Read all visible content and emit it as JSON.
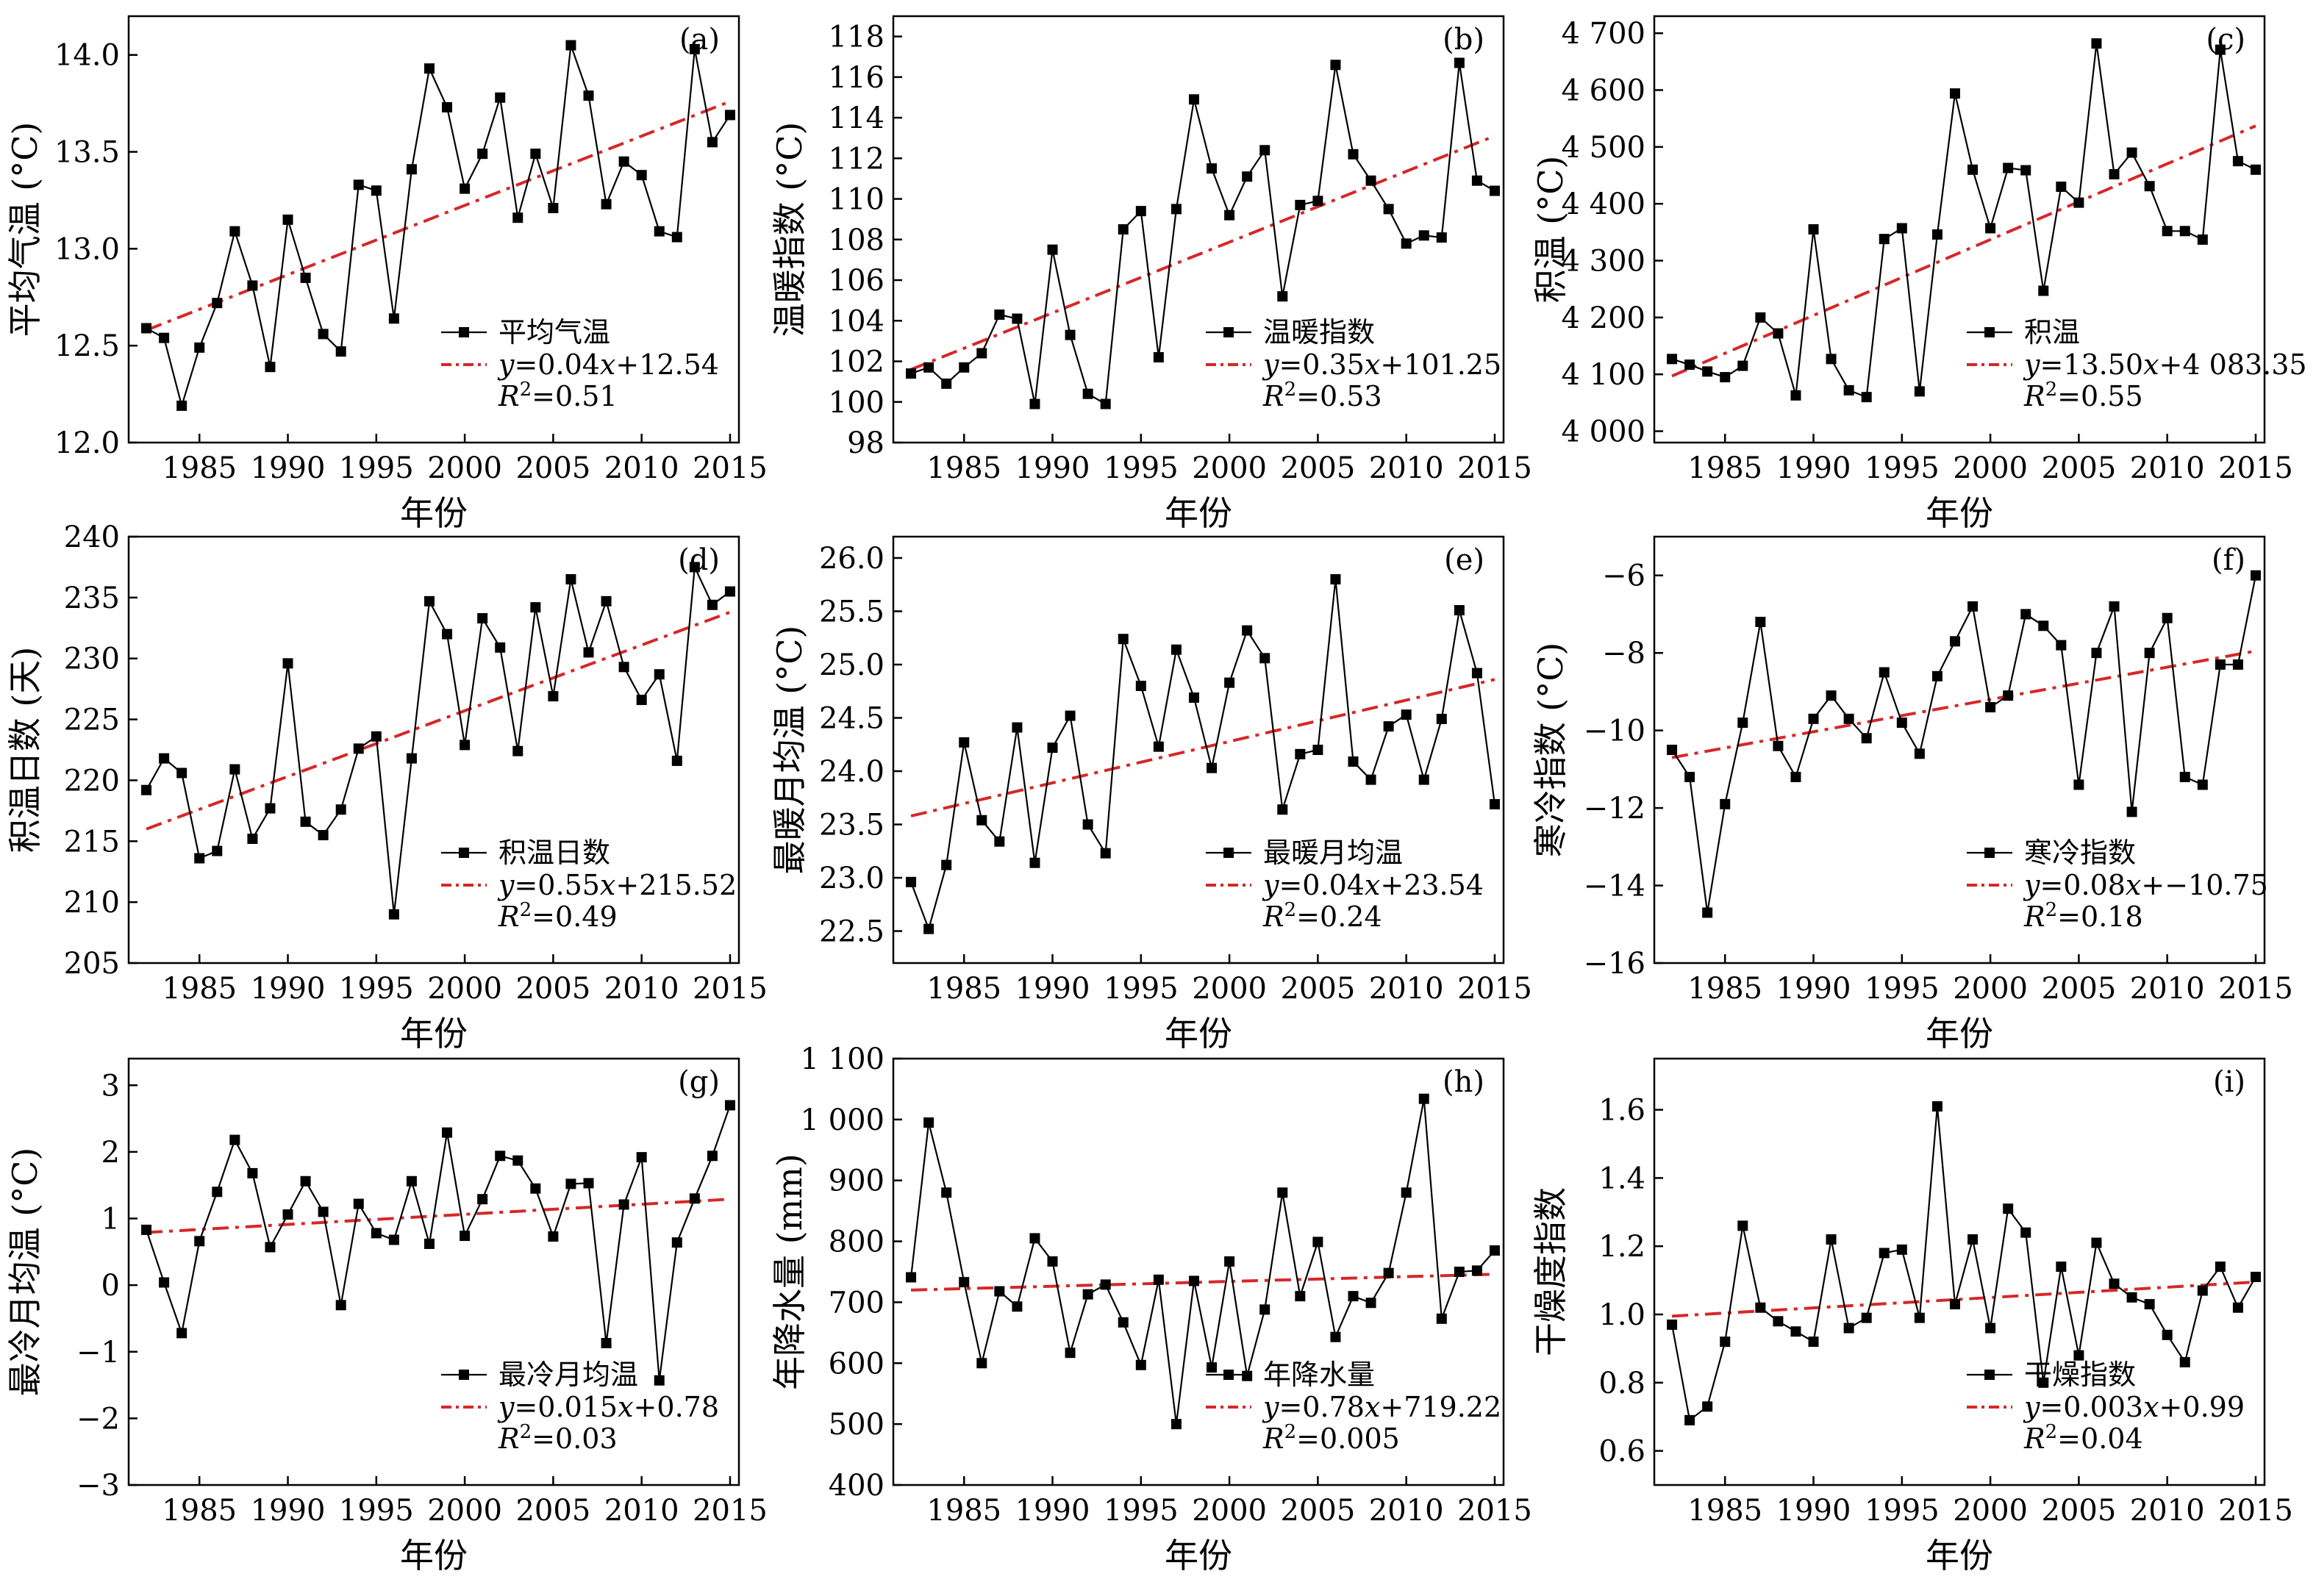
{
  "figure": {
    "x_ticks": [
      "1985",
      "1990",
      "1995",
      "2000",
      "2005",
      "2010",
      "2015"
    ]
  },
  "chart_data": [
    {
      "panel": "(a)",
      "type": "line",
      "xlabel": "年份",
      "ylabel": "平均气温 (°C)",
      "ylim": [
        12.0,
        14.2
      ],
      "yticks": [
        12.0,
        12.5,
        13.0,
        13.5,
        14.0
      ],
      "ytick_labels": [
        "12.0",
        "12.5",
        "13.0",
        "13.5",
        "14.0"
      ],
      "x": [
        1982,
        1983,
        1984,
        1985,
        1986,
        1987,
        1988,
        1989,
        1990,
        1991,
        1992,
        1993,
        1994,
        1995,
        1996,
        1997,
        1998,
        1999,
        2000,
        2001,
        2002,
        2003,
        2004,
        2005,
        2006,
        2007,
        2008,
        2009,
        2010,
        2011,
        2012,
        2013,
        2014,
        2015
      ],
      "series": [
        {
          "name": "平均气温",
          "values": [
            12.59,
            12.54,
            12.19,
            12.49,
            12.72,
            13.09,
            12.81,
            12.39,
            13.15,
            12.85,
            12.56,
            12.47,
            13.33,
            13.3,
            12.64,
            13.41,
            13.93,
            13.73,
            13.31,
            13.49,
            13.78,
            13.16,
            13.49,
            13.21,
            14.05,
            13.79,
            13.23,
            13.45,
            13.38,
            13.09,
            13.06,
            14.03,
            13.55,
            13.69
          ]
        }
      ],
      "trend": {
        "equation": "y=0.04x+12.54",
        "r2": "R²=0.51",
        "start": 12.58,
        "end": 13.76
      },
      "legend": {
        "series_label": "平均气温",
        "eq_prefix": "y",
        "eq_mid": "=0.04",
        "eq_x": "x",
        "eq_rest": "+12.54",
        "r2_prefix": "R",
        "r2_sup": "2",
        "r2_rest": "=0.51"
      }
    },
    {
      "panel": "(b)",
      "type": "line",
      "xlabel": "年份",
      "ylabel": "温暖指数 (°C)",
      "ylim": [
        98,
        119
      ],
      "yticks": [
        98,
        100,
        102,
        104,
        106,
        108,
        110,
        112,
        114,
        116,
        118
      ],
      "ytick_labels": [
        "98",
        "100",
        "102",
        "104",
        "106",
        "108",
        "110",
        "112",
        "114",
        "116",
        "118"
      ],
      "x": [
        1982,
        1983,
        1984,
        1985,
        1986,
        1987,
        1988,
        1989,
        1990,
        1991,
        1992,
        1993,
        1994,
        1995,
        1996,
        1997,
        1998,
        1999,
        2000,
        2001,
        2002,
        2003,
        2004,
        2005,
        2006,
        2007,
        2008,
        2009,
        2010,
        2011,
        2012,
        2013,
        2014,
        2015
      ],
      "series": [
        {
          "name": "温暖指数",
          "values": [
            101.4,
            101.7,
            100.9,
            101.7,
            102.4,
            104.3,
            104.1,
            99.9,
            107.5,
            103.3,
            100.4,
            99.9,
            108.5,
            109.4,
            102.2,
            109.5,
            114.9,
            111.5,
            109.2,
            111.1,
            112.4,
            105.2,
            109.7,
            109.9,
            116.6,
            112.2,
            110.9,
            109.5,
            107.8,
            108.2,
            108.1,
            116.7,
            110.9,
            110.4
          ]
        }
      ],
      "trend": {
        "equation": "y=0.35x+101.25",
        "r2": "R²=0.53",
        "start": 101.6,
        "end": 113.1
      },
      "legend": {
        "series_label": "温暖指数",
        "eq_prefix": "y",
        "eq_mid": "=0.35",
        "eq_x": "x",
        "eq_rest": "+101.25",
        "r2_prefix": "R",
        "r2_sup": "2",
        "r2_rest": "=0.53"
      }
    },
    {
      "panel": "(c)",
      "type": "line",
      "xlabel": "年份",
      "ylabel": "积温 (°C)",
      "ylim": [
        3980,
        4730
      ],
      "yticks": [
        4000,
        4100,
        4200,
        4300,
        4400,
        4500,
        4600,
        4700
      ],
      "ytick_labels": [
        "4 000",
        "4 100",
        "4 200",
        "4 300",
        "4 400",
        "4 500",
        "4 600",
        "4 700"
      ],
      "x": [
        1982,
        1983,
        1984,
        1985,
        1986,
        1987,
        1988,
        1989,
        1990,
        1991,
        1992,
        1993,
        1994,
        1995,
        1996,
        1997,
        1998,
        1999,
        2000,
        2001,
        2002,
        2003,
        2004,
        2005,
        2006,
        2007,
        2008,
        2009,
        2010,
        2011,
        2012,
        2013,
        2014,
        2015
      ],
      "series": [
        {
          "name": "积温",
          "values": [
            4127,
            4117,
            4105,
            4095,
            4115,
            4200,
            4172,
            4063,
            4355,
            4127,
            4072,
            4060,
            4338,
            4357,
            4070,
            4346,
            4594,
            4460,
            4357,
            4463,
            4459,
            4247,
            4430,
            4402,
            4682,
            4452,
            4490,
            4431,
            4352,
            4352,
            4337,
            4671,
            4475,
            4460
          ]
        }
      ],
      "trend": {
        "equation": "y=13.50x+4 083.35",
        "r2": "R²=0.55",
        "start": 4097,
        "end": 4537
      },
      "legend": {
        "series_label": "积温",
        "eq_prefix": "y",
        "eq_mid": "=13.50",
        "eq_x": "x",
        "eq_rest": "+4 083.35",
        "r2_prefix": "R",
        "r2_sup": "2",
        "r2_rest": "=0.55"
      }
    },
    {
      "panel": "(d)",
      "type": "line",
      "xlabel": "年份",
      "ylabel": "积温日数 (天)",
      "ylim": [
        205,
        240
      ],
      "yticks": [
        205,
        210,
        215,
        220,
        225,
        230,
        235,
        240
      ],
      "ytick_labels": [
        "205",
        "210",
        "215",
        "220",
        "225",
        "230",
        "235",
        "240"
      ],
      "x": [
        1982,
        1983,
        1984,
        1985,
        1986,
        1987,
        1988,
        1989,
        1990,
        1991,
        1992,
        1993,
        1994,
        1995,
        1996,
        1997,
        1998,
        1999,
        2000,
        2001,
        2002,
        2003,
        2004,
        2005,
        2006,
        2007,
        2008,
        2009,
        2010,
        2011,
        2012,
        2013,
        2014,
        2015
      ],
      "series": [
        {
          "name": "积温日数",
          "values": [
            219.2,
            221.8,
            220.6,
            213.6,
            214.2,
            220.9,
            215.2,
            217.7,
            229.6,
            216.6,
            215.5,
            217.6,
            222.6,
            223.6,
            209.0,
            221.8,
            234.7,
            232.0,
            222.9,
            233.3,
            230.9,
            222.4,
            234.2,
            226.9,
            236.5,
            230.5,
            234.7,
            229.3,
            226.6,
            228.7,
            221.6,
            237.5,
            234.4,
            235.5
          ]
        }
      ],
      "trend": {
        "equation": "y=0.55x+215.52",
        "r2": "R²=0.49",
        "start": 216.0,
        "end": 233.8
      },
      "legend": {
        "series_label": "积温日数",
        "eq_prefix": "y",
        "eq_mid": "=0.55",
        "eq_x": "x",
        "eq_rest": "+215.52",
        "r2_prefix": "R",
        "r2_sup": "2",
        "r2_rest": "=0.49"
      }
    },
    {
      "panel": "(e)",
      "type": "line",
      "xlabel": "年份",
      "ylabel": "最暖月均温 (°C)",
      "ylim": [
        22.2,
        26.2
      ],
      "yticks": [
        22.5,
        23.0,
        23.5,
        24.0,
        24.5,
        25.0,
        25.5,
        26.0
      ],
      "ytick_labels": [
        "22.5",
        "23.0",
        "23.5",
        "24.0",
        "24.5",
        "25.0",
        "25.5",
        "26.0"
      ],
      "x": [
        1982,
        1983,
        1984,
        1985,
        1986,
        1987,
        1988,
        1989,
        1990,
        1991,
        1992,
        1993,
        1994,
        1995,
        1996,
        1997,
        1998,
        1999,
        2000,
        2001,
        2002,
        2003,
        2004,
        2005,
        2006,
        2007,
        2008,
        2009,
        2010,
        2011,
        2012,
        2013,
        2014,
        2015
      ],
      "series": [
        {
          "name": "最暖月均温",
          "values": [
            22.96,
            22.52,
            23.12,
            24.27,
            23.54,
            23.34,
            24.41,
            23.14,
            24.22,
            24.52,
            23.5,
            23.23,
            25.24,
            24.8,
            24.23,
            25.14,
            24.69,
            24.03,
            24.83,
            25.32,
            25.06,
            23.64,
            24.16,
            24.2,
            25.8,
            24.09,
            23.92,
            24.42,
            24.53,
            23.92,
            24.49,
            25.51,
            24.92,
            23.69
          ]
        }
      ],
      "trend": {
        "equation": "y=0.04x+23.54",
        "r2": "R²=0.24",
        "start": 23.58,
        "end": 24.86
      },
      "legend": {
        "series_label": "最暖月均温",
        "eq_prefix": "y",
        "eq_mid": "=0.04",
        "eq_x": "x",
        "eq_rest": "+23.54",
        "r2_prefix": "R",
        "r2_sup": "2",
        "r2_rest": "=0.24"
      }
    },
    {
      "panel": "(f)",
      "type": "line",
      "xlabel": "年份",
      "ylabel": "寒冷指数 (°C)",
      "ylim": [
        -16,
        -5
      ],
      "yticks": [
        -16,
        -14,
        -12,
        -10,
        -8,
        -6
      ],
      "ytick_labels": [
        "−16",
        "−14",
        "−12",
        "−10",
        "−8",
        "−6"
      ],
      "x": [
        1982,
        1983,
        1984,
        1985,
        1986,
        1987,
        1988,
        1989,
        1990,
        1991,
        1992,
        1993,
        1994,
        1995,
        1996,
        1997,
        1998,
        1999,
        2000,
        2001,
        2002,
        2003,
        2004,
        2005,
        2006,
        2007,
        2008,
        2009,
        2010,
        2011,
        2012,
        2013,
        2014,
        2015
      ],
      "series": [
        {
          "name": "寒冷指数",
          "values": [
            -10.5,
            -11.2,
            -14.7,
            -11.9,
            -9.8,
            -7.2,
            -10.4,
            -11.2,
            -9.7,
            -9.1,
            -9.7,
            -10.2,
            -8.5,
            -9.8,
            -10.6,
            -8.6,
            -7.7,
            -6.8,
            -9.4,
            -9.1,
            -7.0,
            -7.3,
            -7.8,
            -11.4,
            -8.0,
            -6.8,
            -12.1,
            -8.0,
            -7.1,
            -11.2,
            -11.4,
            -8.3,
            -8.3,
            -6.0
          ]
        }
      ],
      "trend": {
        "equation": "y=0.08x+−10.75",
        "r2": "R²=0.18",
        "start": -10.7,
        "end": -7.95
      },
      "legend": {
        "series_label": "寒冷指数",
        "eq_prefix": "y",
        "eq_mid": "=0.08",
        "eq_x": "x",
        "eq_rest": "+−10.75",
        "r2_prefix": "R",
        "r2_sup": "2",
        "r2_rest": "=0.18"
      }
    },
    {
      "panel": "(g)",
      "type": "line",
      "xlabel": "年份",
      "ylabel": "最冷月均温 (°C)",
      "ylim": [
        -3,
        3.4
      ],
      "yticks": [
        -3,
        -2,
        -1,
        0,
        1,
        2,
        3
      ],
      "ytick_labels": [
        "−3",
        "−2",
        "−1",
        "0",
        "1",
        "2",
        "3"
      ],
      "x": [
        1982,
        1983,
        1984,
        1985,
        1986,
        1987,
        1988,
        1989,
        1990,
        1991,
        1992,
        1993,
        1994,
        1995,
        1996,
        1997,
        1998,
        1999,
        2000,
        2001,
        2002,
        2003,
        2004,
        2005,
        2006,
        2007,
        2008,
        2009,
        2010,
        2011,
        2012,
        2013,
        2014,
        2015
      ],
      "series": [
        {
          "name": "最冷月均温",
          "values": [
            0.83,
            0.04,
            -0.72,
            0.66,
            1.4,
            2.18,
            1.68,
            0.57,
            1.06,
            1.56,
            1.1,
            -0.3,
            1.22,
            0.78,
            0.68,
            1.56,
            0.62,
            2.29,
            0.74,
            1.29,
            1.94,
            1.87,
            1.45,
            0.73,
            1.52,
            1.53,
            -0.87,
            1.21,
            1.92,
            -1.43,
            0.64,
            1.3,
            1.94,
            2.7
          ]
        }
      ],
      "trend": {
        "equation": "y=0.015x+0.78",
        "r2": "R²=0.03",
        "start": 0.79,
        "end": 1.29
      },
      "legend": {
        "series_label": "最冷月均温",
        "eq_prefix": "y",
        "eq_mid": "=0.015",
        "eq_x": "x",
        "eq_rest": "+0.78",
        "r2_prefix": "R",
        "r2_sup": "2",
        "r2_rest": "=0.03"
      }
    },
    {
      "panel": "(h)",
      "type": "line",
      "xlabel": "年份",
      "ylabel": "年降水量 (mm)",
      "ylim": [
        400,
        1100
      ],
      "yticks": [
        400,
        500,
        600,
        700,
        800,
        900,
        1000,
        1100
      ],
      "ytick_labels": [
        "400",
        "500",
        "600",
        "700",
        "800",
        "900",
        "1 000",
        "1 100"
      ],
      "x": [
        1982,
        1983,
        1984,
        1985,
        1986,
        1987,
        1988,
        1989,
        1990,
        1991,
        1992,
        1993,
        1994,
        1995,
        1996,
        1997,
        1998,
        1999,
        2000,
        2001,
        2002,
        2003,
        2004,
        2005,
        2006,
        2007,
        2008,
        2009,
        2010,
        2011,
        2012,
        2013,
        2014,
        2015
      ],
      "series": [
        {
          "name": "年降水量",
          "values": [
            741,
            995,
            880,
            733,
            600,
            718,
            693,
            805,
            767,
            617,
            713,
            729,
            667,
            597,
            737,
            500,
            735,
            593,
            767,
            579,
            688,
            880,
            710,
            799,
            643,
            710,
            699,
            748,
            880,
            1034,
            673,
            750,
            752,
            785
          ]
        }
      ],
      "trend": {
        "equation": "y=0.78x+719.22",
        "r2": "R²=0.005",
        "start": 720,
        "end": 746
      },
      "legend": {
        "series_label": "年降水量",
        "eq_prefix": "y",
        "eq_mid": "=0.78",
        "eq_x": "x",
        "eq_rest": "+719.22",
        "r2_prefix": "R",
        "r2_sup": "2",
        "r2_rest": "=0.005"
      }
    },
    {
      "panel": "(i)",
      "type": "line",
      "xlabel": "年份",
      "ylabel": "干燥度指数",
      "ylim": [
        0.5,
        1.75
      ],
      "yticks": [
        0.6,
        0.8,
        1.0,
        1.2,
        1.4,
        1.6
      ],
      "ytick_labels": [
        "0.6",
        "0.8",
        "1.0",
        "1.2",
        "1.4",
        "1.6"
      ],
      "x": [
        1982,
        1983,
        1984,
        1985,
        1986,
        1987,
        1988,
        1989,
        1990,
        1991,
        1992,
        1993,
        1994,
        1995,
        1996,
        1997,
        1998,
        1999,
        2000,
        2001,
        2002,
        2003,
        2004,
        2005,
        2006,
        2007,
        2008,
        2009,
        2010,
        2011,
        2012,
        2013,
        2014,
        2015
      ],
      "series": [
        {
          "name": "干燥指数",
          "values": [
            0.97,
            0.69,
            0.73,
            0.92,
            1.26,
            1.02,
            0.98,
            0.95,
            0.92,
            1.22,
            0.96,
            0.99,
            1.18,
            1.19,
            0.99,
            1.61,
            1.03,
            1.22,
            0.96,
            1.31,
            1.24,
            0.8,
            1.14,
            0.88,
            1.21,
            1.09,
            1.05,
            1.03,
            0.94,
            0.86,
            1.07,
            1.14,
            1.02,
            1.11
          ]
        }
      ],
      "trend": {
        "equation": "y=0.003x+0.99",
        "r2": "R²=0.04",
        "start": 0.995,
        "end": 1.095
      },
      "legend": {
        "series_label": "干燥指数",
        "eq_prefix": "y",
        "eq_mid": "=0.003",
        "eq_x": "x",
        "eq_rest": "+0.99",
        "r2_prefix": "R",
        "r2_sup": "2",
        "r2_rest": "=0.04"
      }
    }
  ]
}
